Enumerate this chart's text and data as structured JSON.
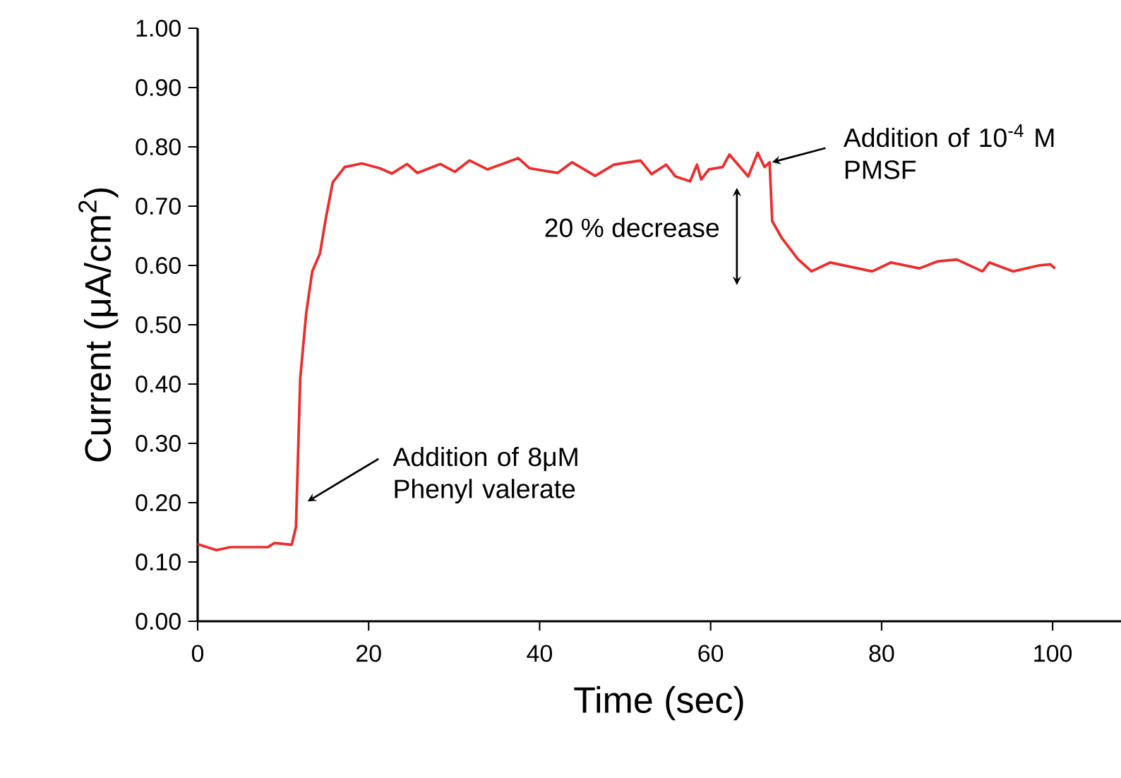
{
  "chart_data": {
    "type": "line",
    "xlabel": "Time (sec)",
    "ylabel": "Current (μA/cm$^{2}$)",
    "x": [
      0,
      2.2,
      3.8,
      8.2,
      9.0,
      11.0,
      11.5,
      12.0,
      12.7,
      13.4,
      14.3,
      15.0,
      15.8,
      17.2,
      19.2,
      21.3,
      22.7,
      24.5,
      25.7,
      28.4,
      30.1,
      31.8,
      33.9,
      37.5,
      38.8,
      42.1,
      43.8,
      46.5,
      48.7,
      51.8,
      53.1,
      54.8,
      55.9,
      57.6,
      58.4,
      58.9,
      59.8,
      61.4,
      62.2,
      64.4,
      65.5,
      66.3,
      66.9,
      67.2,
      68.3,
      70.2,
      71.8,
      74.0,
      78.9,
      81.1,
      84.4,
      86.6,
      88.8,
      91.8,
      92.6,
      95.4,
      98.4,
      99.7,
      100.3
    ],
    "series": [
      {
        "color": "#ee2b2b",
        "values": [
          0.13,
          0.12,
          0.125,
          0.125,
          0.132,
          0.129,
          0.159,
          0.41,
          0.52,
          0.59,
          0.62,
          0.68,
          0.74,
          0.766,
          0.772,
          0.764,
          0.755,
          0.771,
          0.756,
          0.771,
          0.758,
          0.777,
          0.762,
          0.781,
          0.764,
          0.756,
          0.774,
          0.751,
          0.77,
          0.777,
          0.754,
          0.77,
          0.75,
          0.742,
          0.77,
          0.745,
          0.762,
          0.766,
          0.787,
          0.75,
          0.79,
          0.766,
          0.774,
          0.675,
          0.647,
          0.611,
          0.59,
          0.605,
          0.59,
          0.605,
          0.595,
          0.607,
          0.61,
          0.59,
          0.605,
          0.59,
          0.6,
          0.602,
          0.595
        ]
      }
    ],
    "xlim": [
      0,
      108
    ],
    "ylim": [
      0,
      1
    ],
    "xticks": [
      0,
      20,
      40,
      60,
      80,
      100
    ],
    "yticks": [
      {
        "value": 0,
        "label": "0.00"
      },
      {
        "value": 0.1,
        "label": "0.10"
      },
      {
        "value": 0.2,
        "label": "0.20"
      },
      {
        "value": 0.3,
        "label": "0.30"
      },
      {
        "value": 0.4,
        "label": "0.40"
      },
      {
        "value": 0.5,
        "label": "0.50"
      },
      {
        "value": 0.6,
        "label": "0.60"
      },
      {
        "value": 0.7,
        "label": "0.70"
      },
      {
        "value": 0.8,
        "label": "0.80"
      },
      {
        "value": 0.9,
        "label": "0.90"
      },
      {
        "value": 1,
        "label": "1.00"
      }
    ],
    "grid": false,
    "marker": "none",
    "line_style": "solid",
    "annotations": [
      "Addition of 8μM Phenyl valerate",
      "Addition of 10$^{-4}$ M PMSF",
      "20 % decrease"
    ]
  }
}
